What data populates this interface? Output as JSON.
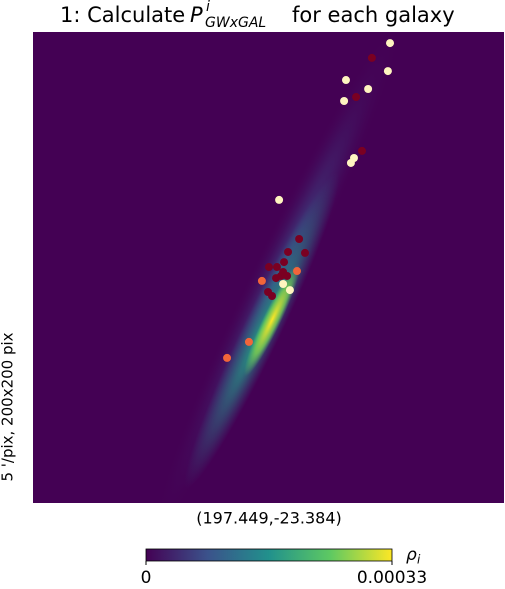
{
  "chart_data": {
    "type": "scatter",
    "title": {
      "prefix": "1: Calculate ",
      "symbol": "P",
      "superscript": "i",
      "subscript": "GWxGAL",
      "suffix": " for each galaxy"
    },
    "resolution_label": "5 '/pix,  200x200 pix",
    "center_label": "(197.449,-23.384)",
    "xlim": [
      0,
      200
    ],
    "ylim": [
      0,
      200
    ],
    "series": [
      {
        "color": "#fff5c0",
        "x": [
          151.6,
          150.7,
          132.9,
          132.1,
          142.3,
          136.3,
          135.0,
          104.5,
          106.2,
          109.1
        ],
        "y": [
          195.3,
          183.4,
          179.6,
          170.7,
          175.8,
          146.5,
          144.4,
          128.7,
          93.0,
          90.4
        ]
      },
      {
        "color": "#7a0022",
        "x": [
          143.9,
          137.2,
          139.7,
          113.0,
          115.5,
          108.3,
          100.2,
          103.6,
          106.6,
          105.3,
          103.2,
          107.9,
          99.8,
          101.5,
          106.2
        ],
        "y": [
          189.0,
          172.4,
          149.5,
          112.1,
          106.2,
          106.6,
          100.2,
          100.2,
          102.3,
          96.4,
          95.5,
          96.4,
          89.6,
          87.9,
          98.1
        ]
      },
      {
        "color": "#f2653a",
        "x": [
          97.2,
          112.1,
          91.7,
          82.4
        ],
        "y": [
          94.3,
          98.5,
          68.4,
          61.6
        ]
      }
    ],
    "colorbar": {
      "label_symbol": "ρ",
      "label_subscript": "i",
      "clim": [
        0,
        0.00033
      ],
      "ticks": [
        0,
        0.00033
      ]
    }
  }
}
